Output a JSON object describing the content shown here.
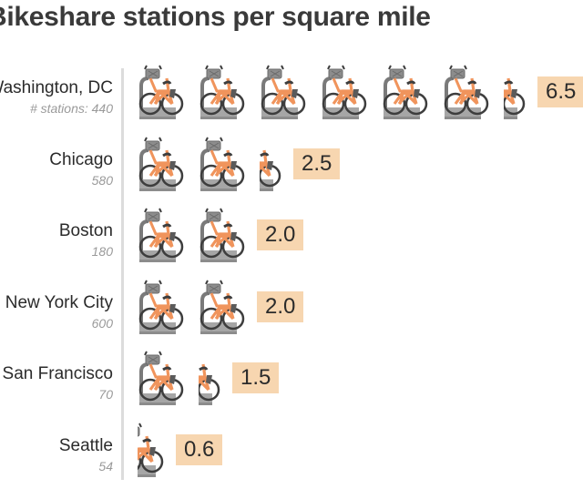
{
  "chart_data": {
    "type": "bar",
    "title": "Bikeshare stations per square mile",
    "categories": [
      "Washington, DC",
      "Chicago",
      "Boston",
      "New York City",
      "San Francisco",
      "Seattle"
    ],
    "station_counts": [
      "# stations: 440",
      "580",
      "180",
      "600",
      "70",
      "54"
    ],
    "values": [
      6.5,
      2.5,
      2.0,
      2.0,
      1.5,
      0.6
    ],
    "value_labels": [
      "6.5",
      "2.5",
      "2.0",
      "2.0",
      "1.5",
      "0.6"
    ],
    "unit_per_icon": 1,
    "icon": "bike-icon",
    "colors": {
      "bike_frame": "#f0945c",
      "bike_dark": "#3d3d3d",
      "dock": "#a6a6a6",
      "badge": "#f7d6b0",
      "axis": "#dcdcdc"
    }
  }
}
